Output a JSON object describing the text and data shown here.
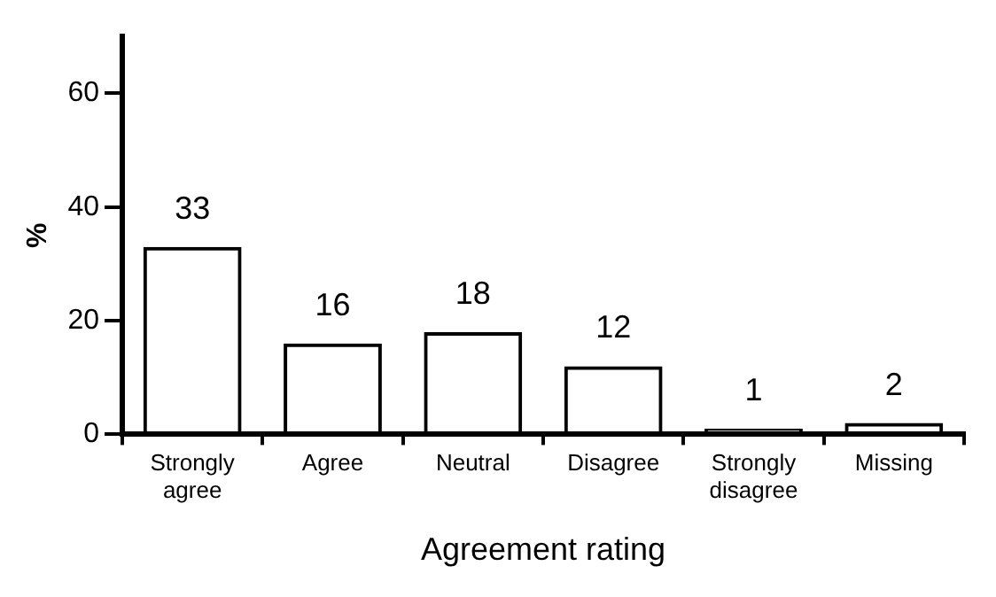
{
  "chart_data": {
    "type": "bar",
    "xlabel": "Agreement rating",
    "ylabel": "%",
    "categories": [
      "Strongly agree",
      "Agree",
      "Neutral",
      "Disagree",
      "Strongly disagree",
      "Missing"
    ],
    "values": [
      33,
      16,
      18,
      12,
      1,
      2
    ],
    "color": "#000000",
    "ylim": [
      0,
      70
    ],
    "yticks": [
      0,
      20,
      40,
      60
    ],
    "grid": false,
    "data_labels": true
  }
}
